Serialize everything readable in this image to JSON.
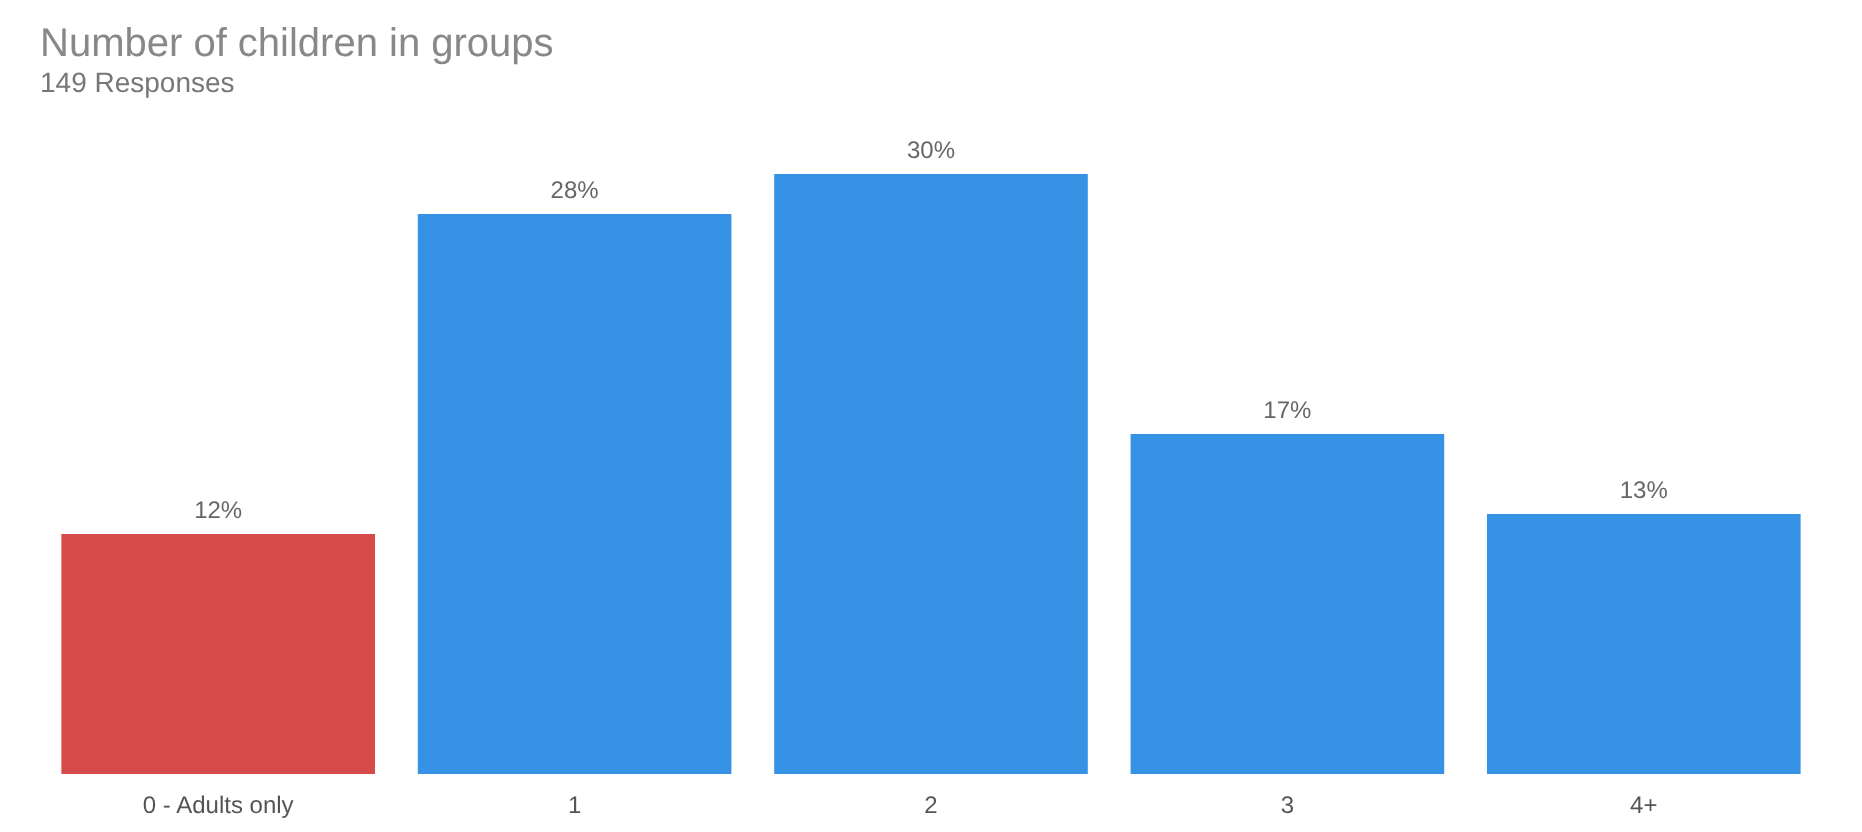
{
  "chart_data": {
    "type": "bar",
    "title": "Number of children in groups",
    "subtitle": "149 Responses",
    "categories": [
      "0 - Adults only",
      "1",
      "2",
      "3",
      "4+"
    ],
    "values": [
      12,
      28,
      30,
      17,
      13
    ],
    "colors": [
      "#d64a4a",
      "#3592e5",
      "#3592e5",
      "#3592e5",
      "#3592e5"
    ],
    "value_labels": [
      "12%",
      "28%",
      "30%",
      "17%",
      "13%"
    ],
    "grid": false,
    "legend": false
  }
}
